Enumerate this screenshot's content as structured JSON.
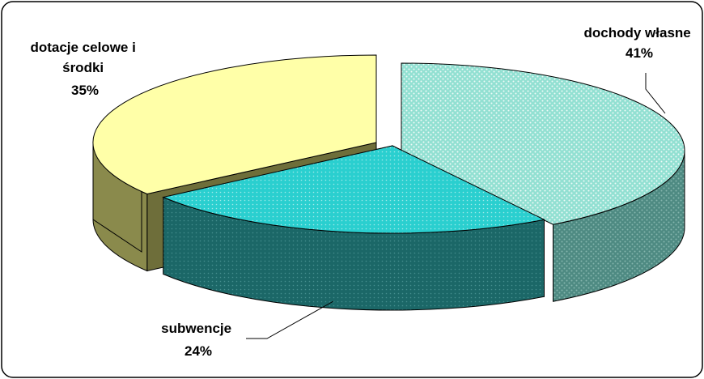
{
  "chart_data": {
    "type": "pie",
    "title": "",
    "slices": [
      {
        "label_lines": [
          "dochody własne"
        ],
        "value": 41,
        "value_label": "41%",
        "color": "#92E0D2",
        "pattern": "dotted"
      },
      {
        "label_lines": [
          "subwencje"
        ],
        "value": 24,
        "value_label": "24%",
        "color": "#2ACFCF",
        "pattern": "dotted"
      },
      {
        "label_lines": [
          "dotacje celowe i",
          "środki"
        ],
        "value": 35,
        "value_label": "35%",
        "color": "#FFFFA8",
        "pattern": "none"
      }
    ],
    "legend": "none",
    "three_d": true
  }
}
